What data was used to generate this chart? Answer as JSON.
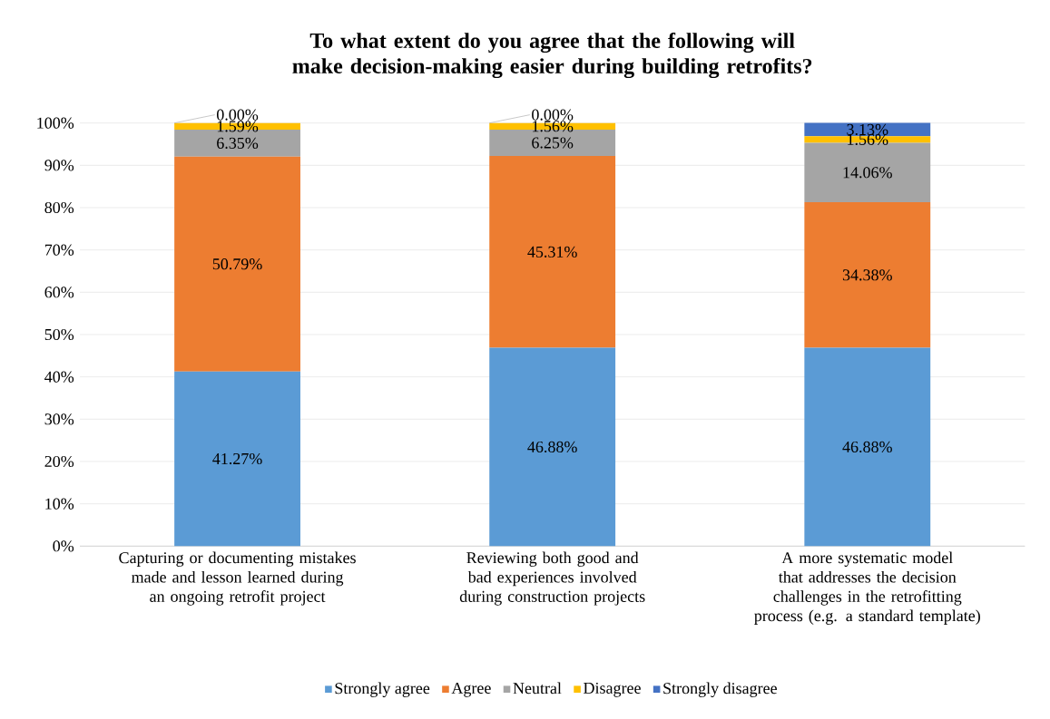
{
  "chart_data": {
    "type": "bar",
    "title": "To what extent do you agree that the following will make decision-making easier during building retrofits?",
    "categories": [
      "Capturing or documenting mistakes made and lesson learned during an ongoing retrofit project",
      "Reviewing both good and bad experiences involved during construction projects",
      "A more systematic model that addresses the decision challenges in the retrofitting process (e.g. a standard template)"
    ],
    "stacked": true,
    "series": [
      {
        "name": "Strongly agree",
        "color": "#5b9bd5",
        "values": [
          41.27,
          46.88,
          46.88
        ],
        "value_labels": [
          "41.27%",
          "46.88%",
          "46.88%"
        ]
      },
      {
        "name": "Agree",
        "color": "#ed7d31",
        "values": [
          50.79,
          45.31,
          34.38
        ],
        "value_labels": [
          "50.79%",
          "45.31%",
          "34.38%"
        ]
      },
      {
        "name": "Neutral",
        "color": "#a5a5a5",
        "values": [
          6.35,
          6.25,
          14.06
        ],
        "value_labels": [
          "6.35%",
          "6.25%",
          "14.06%"
        ]
      },
      {
        "name": "Disagree",
        "color": "#ffc000",
        "values": [
          1.59,
          1.56,
          1.56
        ],
        "value_labels": [
          "1.59%",
          "1.56%",
          "1.56%"
        ]
      },
      {
        "name": "Strongly disagree",
        "color": "#4472c4",
        "values": [
          0.0,
          0.0,
          3.13
        ],
        "value_labels": [
          "0.00%",
          "0.00%",
          "3.13%"
        ]
      }
    ],
    "ylim": [
      0,
      100
    ],
    "yticks": [
      {
        "value": 0,
        "label": "0%"
      },
      {
        "value": 10,
        "label": "10%"
      },
      {
        "value": 20,
        "label": "20%"
      },
      {
        "value": 30,
        "label": "30%"
      },
      {
        "value": 40,
        "label": "40%"
      },
      {
        "value": 50,
        "label": "50%"
      },
      {
        "value": 60,
        "label": "60%"
      },
      {
        "value": 70,
        "label": "70%"
      },
      {
        "value": 80,
        "label": "80%"
      },
      {
        "value": 90,
        "label": "90%"
      },
      {
        "value": 100,
        "label": "100%"
      }
    ],
    "grid": "y",
    "legend": "bottom"
  }
}
